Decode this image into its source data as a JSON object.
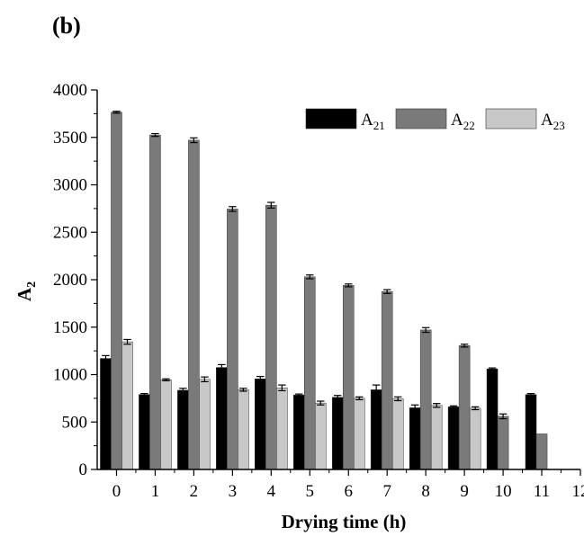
{
  "panel_label": "(b)",
  "chart_data": {
    "type": "bar",
    "title": "",
    "xlabel": "Drying time (h)",
    "ylabel": "A",
    "ylabel_sub": "2",
    "ylim": [
      0,
      4000
    ],
    "yticks": [
      0,
      500,
      1000,
      1500,
      2000,
      2500,
      3000,
      3500,
      4000
    ],
    "xlim": [
      -0.5,
      12
    ],
    "xticks": [
      0,
      1,
      2,
      3,
      4,
      5,
      6,
      7,
      8,
      9,
      10,
      11,
      12
    ],
    "grid": false,
    "legend_position": "top-right",
    "series": [
      {
        "name": "A",
        "name_sub": "21",
        "color": "#000000",
        "values": [
          1170,
          790,
          835,
          1075,
          955,
          785,
          760,
          840,
          650,
          660,
          1060,
          790
        ],
        "errors": [
          30,
          10,
          20,
          30,
          25,
          10,
          20,
          50,
          30,
          10,
          10,
          10
        ]
      },
      {
        "name": "A",
        "name_sub": "22",
        "color": "#7a7a7a",
        "values": [
          3765,
          3525,
          3470,
          2745,
          2785,
          2030,
          1940,
          1875,
          1470,
          1305,
          560,
          375
        ],
        "errors": [
          10,
          15,
          25,
          25,
          30,
          20,
          15,
          20,
          25,
          15,
          25,
          0
        ]
      },
      {
        "name": "A",
        "name_sub": "23",
        "color": "#c8c8c8",
        "values": [
          1345,
          945,
          950,
          840,
          860,
          700,
          750,
          745,
          675,
          645,
          null,
          null
        ],
        "errors": [
          25,
          10,
          25,
          15,
          30,
          20,
          15,
          20,
          20,
          15,
          null,
          null
        ]
      }
    ]
  }
}
